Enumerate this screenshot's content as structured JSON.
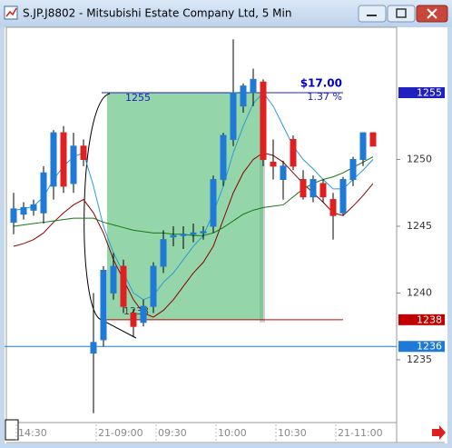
{
  "chart_data": {
    "type": "candlestick",
    "title": "S.JP.J8802 - Mitsubishi Estate Company Ltd, 5 Min",
    "categories": [
      null,
      "14:30",
      null,
      null,
      null,
      null,
      null,
      null,
      null,
      "21-09:00",
      null,
      null,
      null,
      null,
      null,
      "09:30",
      null,
      null,
      null,
      null,
      null,
      "10:00",
      null,
      null,
      null,
      null,
      null,
      "10:30",
      null,
      null,
      null,
      null,
      null,
      "21-11:00",
      null,
      null,
      null
    ],
    "open": [
      1245.3,
      1245.9,
      1246.2,
      1246.0,
      1248.0,
      1252.0,
      1248.2,
      1251.0,
      1235.5,
      1236.5,
      1240.0,
      1242.0,
      1238.5,
      1237.8,
      1239.0,
      1242.0,
      1244.2,
      1244.3,
      1244.4,
      1244.5,
      1245.0,
      1248.5,
      1251.5,
      1254.0,
      1255.0,
      1255.8,
      1249.8,
      1248.5,
      1251.5,
      1248.5,
      1247.2,
      1248.2,
      1247.0,
      1246.0,
      1248.5,
      1250.0,
      1252.0
    ],
    "high": [
      1247.5,
      1246.8,
      1247.0,
      1249.5,
      1252.2,
      1252.5,
      1252.0,
      1251.5,
      1240.0,
      1242.0,
      1243.0,
      1242.5,
      1238.8,
      1239.5,
      1242.3,
      1244.7,
      1245.0,
      1245.0,
      1245.2,
      1245.0,
      1248.8,
      1252.0,
      1259.0,
      1255.7,
      1256.8,
      1256.0,
      1251.5,
      1249.9,
      1251.8,
      1249.2,
      1248.8,
      1248.5,
      1247.5,
      1248.7,
      1250.2,
      1252.0,
      1252.0
    ],
    "low": [
      1244.4,
      1245.5,
      1245.8,
      1245.2,
      1247.0,
      1247.5,
      1247.5,
      1249.5,
      1231.0,
      1236.0,
      1239.5,
      1238.5,
      1236.7,
      1237.5,
      1238.5,
      1241.5,
      1243.5,
      1243.3,
      1243.8,
      1244.0,
      1244.5,
      1248.0,
      1251.0,
      1253.5,
      1254.0,
      1249.5,
      1248.5,
      1247.0,
      1249.2,
      1247.0,
      1246.8,
      1246.8,
      1244.0,
      1245.8,
      1248.0,
      1249.5,
      1251.0
    ],
    "close": [
      1246.3,
      1246.4,
      1246.6,
      1249.0,
      1252.0,
      1248.0,
      1251.0,
      1250.0,
      1236.3,
      1241.7,
      1242.0,
      1239.0,
      1237.5,
      1239.0,
      1242.0,
      1244.0,
      1244.3,
      1244.4,
      1244.5,
      1244.6,
      1248.5,
      1251.8,
      1255.0,
      1255.5,
      1256.0,
      1250.0,
      1249.5,
      1249.5,
      1249.5,
      1247.2,
      1248.5,
      1247.2,
      1245.8,
      1248.5,
      1250.0,
      1252.0,
      1251.0
    ],
    "up_color": "#1e7ad6",
    "down_color": "#e02020",
    "series": [
      {
        "color": "#2a9bd8",
        "values": [
          1246.2,
          1246.3,
          1246.5,
          1247.2,
          1248.5,
          1249.5,
          1250.2,
          1250.5,
          1248.0,
          1245.0,
          1243.0,
          1241.5,
          1240.0,
          1239.5,
          1239.8,
          1240.8,
          1241.5,
          1242.5,
          1243.5,
          1244.3,
          1246.0,
          1248.0,
          1250.5,
          1252.5,
          1254.2,
          1255.0,
          1254.0,
          1252.5,
          1251.0,
          1250.0,
          1249.3,
          1248.5,
          1247.8,
          1247.8,
          1248.5,
          1249.2,
          1250.0
        ]
      },
      {
        "color": "#8b0000",
        "values": [
          1243.5,
          1243.7,
          1244.0,
          1244.5,
          1245.3,
          1246.0,
          1246.6,
          1247.0,
          1246.0,
          1244.5,
          1242.5,
          1241.0,
          1239.5,
          1238.5,
          1238.2,
          1238.7,
          1239.5,
          1240.5,
          1241.5,
          1242.3,
          1243.5,
          1245.5,
          1247.5,
          1249.0,
          1250.0,
          1250.5,
          1250.3,
          1249.8,
          1249.0,
          1248.2,
          1247.5,
          1246.8,
          1246.0,
          1245.8,
          1246.5,
          1247.3,
          1248.2
        ]
      },
      {
        "color": "#137a13",
        "values": [
          1245.0,
          1245.1,
          1245.2,
          1245.3,
          1245.4,
          1245.5,
          1245.6,
          1245.6,
          1245.6,
          1245.3,
          1245.1,
          1244.9,
          1244.7,
          1244.6,
          1244.5,
          1244.5,
          1244.4,
          1244.4,
          1244.3,
          1244.3,
          1244.5,
          1244.9,
          1245.4,
          1245.9,
          1246.2,
          1246.4,
          1246.5,
          1246.6,
          1247.2,
          1247.8,
          1248.2,
          1248.5,
          1248.7,
          1249.0,
          1249.4,
          1249.8,
          1250.2
        ]
      }
    ],
    "ylim": [
      1230.3,
      1259.9
    ],
    "yticks": [
      1235,
      1240,
      1245,
      1250
    ],
    "measure": {
      "top": 1255,
      "bottom": 1238,
      "change": "$17.00",
      "percent": "1.37 %",
      "color": "#5cbf7c"
    },
    "price_lines": [
      {
        "value": 1255,
        "color": "#2020c0"
      },
      {
        "value": 1238,
        "color": "#c00000"
      },
      {
        "value": 1236,
        "color": "#1e7ad6"
      }
    ]
  }
}
